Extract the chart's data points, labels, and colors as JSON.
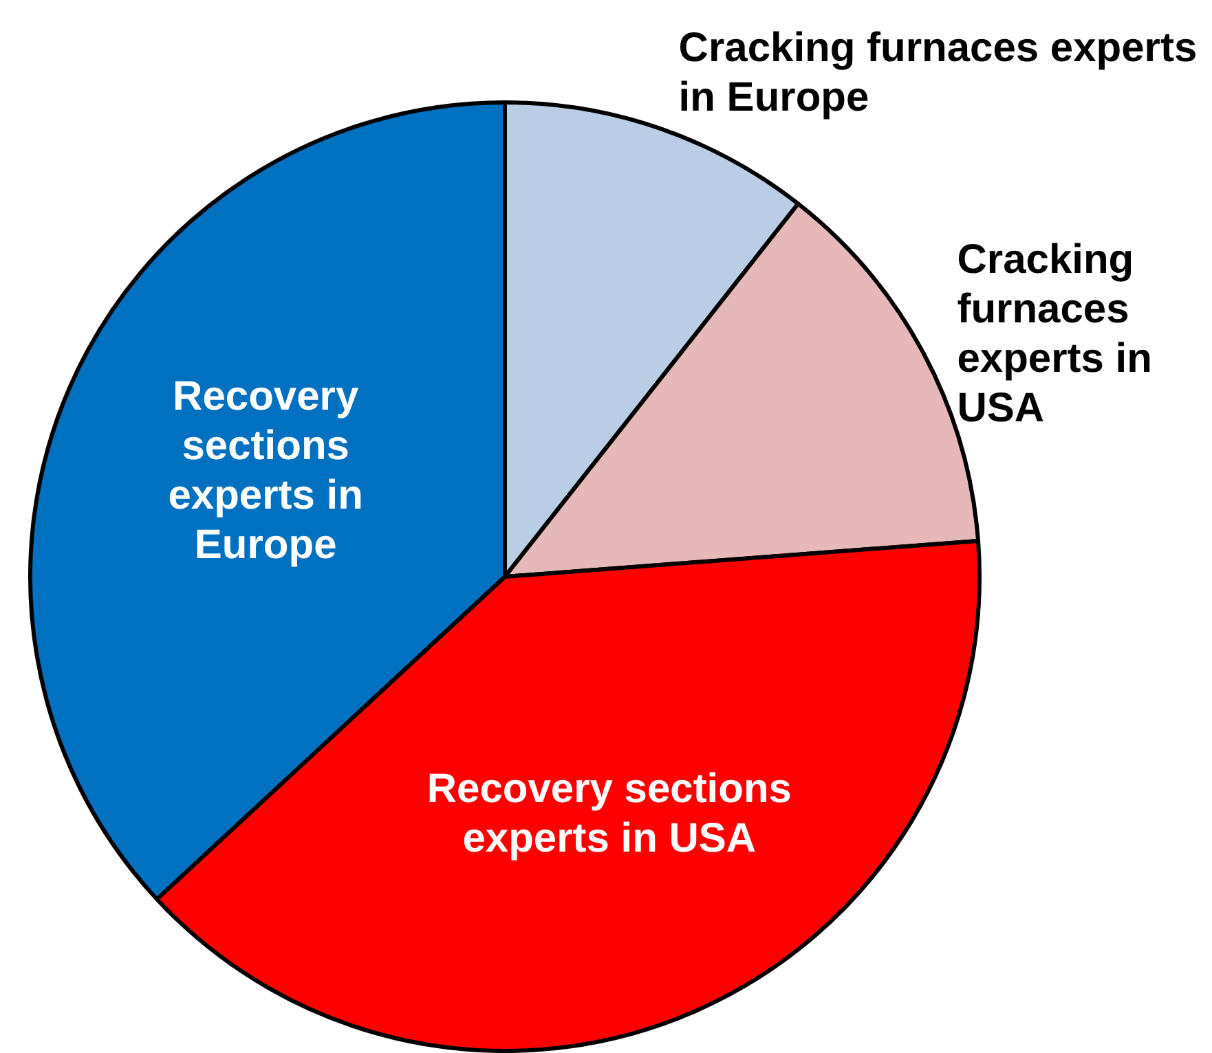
{
  "chart_data": {
    "type": "pie",
    "categories": [
      "Cracking furnaces experts in Europe",
      "Cracking furnaces experts in USA",
      "Recovery sections experts in USA",
      "Recovery sections experts in Europe"
    ],
    "values": [
      10.6,
      13.2,
      39.3,
      36.9
    ],
    "colors": [
      "#b9cde5",
      "#e6b9b8",
      "#ff0000",
      "#0070c0"
    ]
  }
}
